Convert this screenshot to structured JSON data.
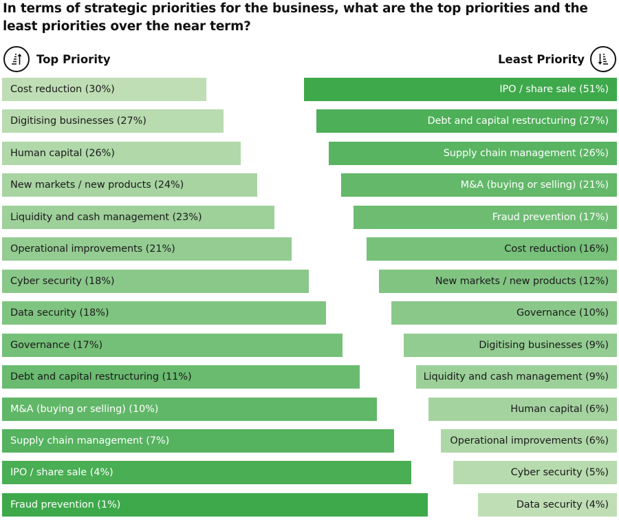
{
  "title": "In terms of strategic priorities for the business, what are the top priorities and the least priorities over the near term?",
  "headers": {
    "left": {
      "label": "Top Priority",
      "icon": "sort-ascending-icon"
    },
    "right": {
      "label": "Least Priority",
      "icon": "sort-descending-icon"
    }
  },
  "colors": {
    "light_green": "#bfdeb5",
    "dark_green": "#3ea94b",
    "dark_text": "#1a1a1a",
    "light_text": "#ffffff"
  },
  "chart_data": [
    {
      "type": "bar",
      "title": "Top Priority",
      "orientation": "horizontal",
      "value_unit": "%",
      "categories": [
        "Cost reduction",
        "Digitising businesses",
        "Human capital",
        "New markets / new products",
        "Liquidity and cash management",
        "Operational improvements",
        "Cyber security",
        "Data security",
        "Governance",
        "Debt and capital restructuring",
        "M&A (buying or selling)",
        "Supply chain management",
        "IPO / share sale",
        "Fraud prevention"
      ],
      "values": [
        30,
        27,
        26,
        24,
        23,
        21,
        18,
        18,
        17,
        11,
        10,
        7,
        4,
        1
      ],
      "labels": [
        "Cost reduction (30%)",
        "Digitising businesses (27%)",
        "Human capital (26%)",
        "New markets / new products (24%)",
        "Liquidity and cash management (23%)",
        "Operational improvements (21%)",
        "Cyber security (18%)",
        "Data security (18%)",
        "Governance (17%)",
        "Debt and capital restructuring (11%)",
        "M&A (buying or selling) (10%)",
        "Supply chain management (7%)",
        "IPO / share sale (4%)",
        "Fraud prevention (1%)"
      ]
    },
    {
      "type": "bar",
      "title": "Least Priority",
      "orientation": "horizontal",
      "value_unit": "%",
      "categories": [
        "IPO / share sale",
        "Debt and capital restructuring",
        "Supply chain management",
        "M&A (buying or selling)",
        "Fraud prevention",
        "Cost reduction",
        "New markets / new products",
        "Governance",
        "Digitising businesses",
        "Liquidity and cash management",
        "Human capital",
        "Operational improvements",
        "Cyber security",
        "Data security"
      ],
      "values": [
        51,
        27,
        26,
        21,
        17,
        16,
        12,
        10,
        9,
        9,
        6,
        6,
        5,
        4
      ],
      "labels": [
        "IPO / share sale (51%)",
        "Debt and capital restructuring (27%)",
        "Supply chain management (26%)",
        "M&A (buying or selling) (21%)",
        "Fraud prevention (17%)",
        "Cost reduction (16%)",
        "New markets / new products (12%)",
        "Governance (10%)",
        "Digitising businesses (9%)",
        "Liquidity and cash management (9%)",
        "Human capital (6%)",
        "Operational improvements (6%)",
        "Cyber security (5%)",
        "Data security (4%)"
      ]
    }
  ]
}
